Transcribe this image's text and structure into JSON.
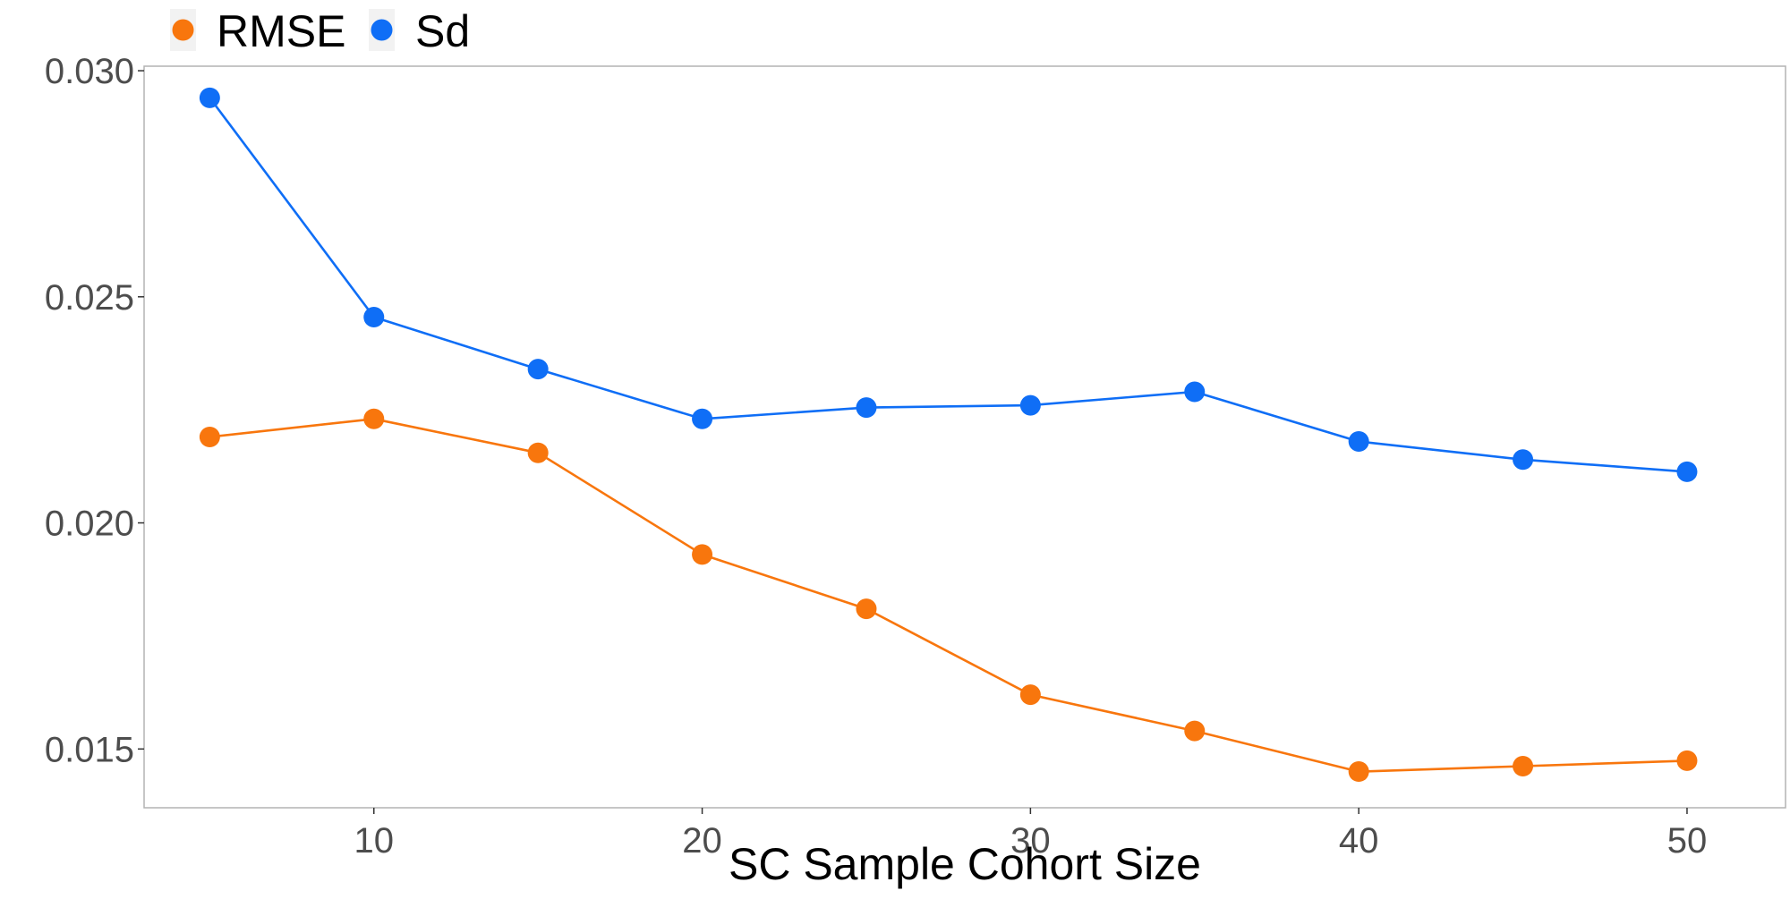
{
  "chart_data": {
    "type": "line",
    "xlabel": "SC Sample Cohort Size",
    "ylabel": "",
    "x": [
      5,
      10,
      15,
      20,
      25,
      30,
      35,
      40,
      45,
      50
    ],
    "xlim": [
      3,
      53
    ],
    "ylim": [
      0.0137,
      0.0301
    ],
    "x_ticks": [
      10,
      20,
      30,
      40,
      50
    ],
    "x_tick_labels": [
      "10",
      "20",
      "30",
      "40",
      "50"
    ],
    "y_ticks": [
      0.015,
      0.02,
      0.025,
      0.03
    ],
    "y_tick_labels": [
      "0.015",
      "0.020",
      "0.025",
      "0.030"
    ],
    "grid": false,
    "legend_position": "top-left",
    "series": [
      {
        "name": "RMSE",
        "color": "#F8760D",
        "values": [
          0.0219,
          0.0223,
          0.02155,
          0.0193,
          0.0181,
          0.0162,
          0.0154,
          0.0145,
          0.01462,
          0.01474
        ]
      },
      {
        "name": "Sd",
        "color": "#0F6EF6",
        "values": [
          0.0294,
          0.02455,
          0.0234,
          0.0223,
          0.02255,
          0.0226,
          0.0229,
          0.0218,
          0.0214,
          0.02113
        ]
      }
    ]
  }
}
